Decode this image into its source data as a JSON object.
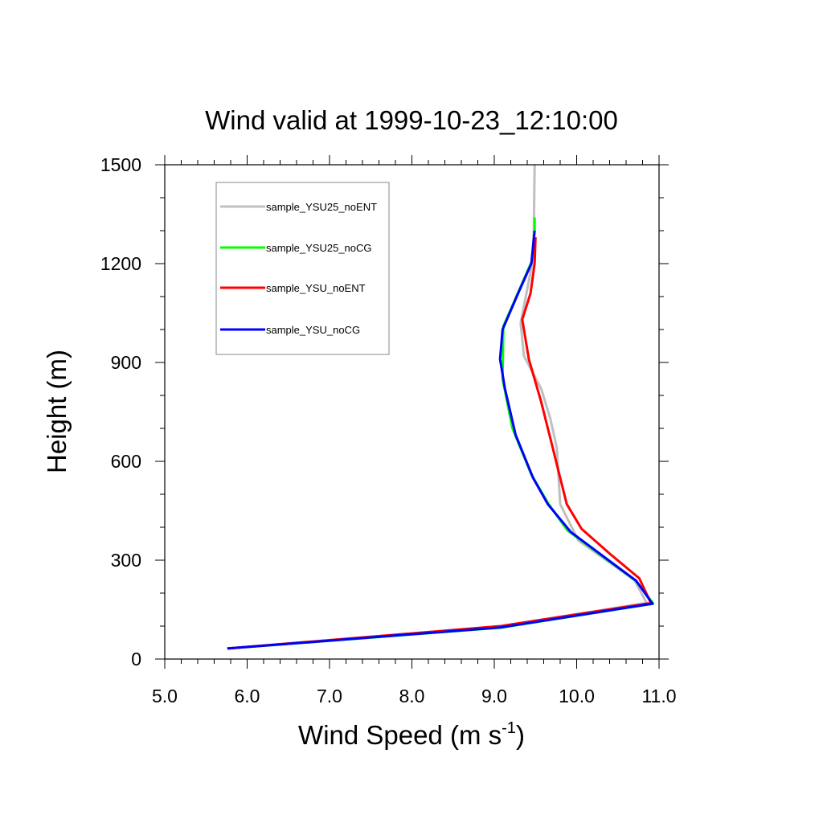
{
  "chart_data": {
    "type": "line",
    "title": "Wind valid at 1999-10-23_12:10:00",
    "xlabel": "Wind Speed (m s",
    "xlabel_sup": "-1",
    "xlabel_tail": ")",
    "ylabel": "Height (m)",
    "xlim": [
      5.0,
      11.0
    ],
    "ylim": [
      0,
      1500
    ],
    "xticks": [
      "5.0",
      "6.0",
      "7.0",
      "8.0",
      "9.0",
      "10.0",
      "11.0"
    ],
    "yticks": [
      "0",
      "300",
      "600",
      "900",
      "1200",
      "1500"
    ],
    "legend_position": "top-left",
    "grid": false,
    "series": [
      {
        "name": "sample_YSU25_noENT",
        "color": "#bfbfbf",
        "x": [
          5.76,
          9.08,
          10.85,
          10.7,
          10.02,
          9.8,
          9.76,
          9.68,
          9.57,
          9.36,
          9.32,
          9.46,
          9.48,
          9.49
        ],
        "y": [
          32,
          100,
          170,
          240,
          360,
          470,
          640,
          730,
          820,
          920,
          1020,
          1200,
          1300,
          1500
        ]
      },
      {
        "name": "sample_YSU25_noCG",
        "color": "#00ff00",
        "x": [
          5.76,
          9.08,
          10.93,
          10.73,
          9.89,
          9.66,
          9.45,
          9.22,
          9.1,
          9.11,
          9.46,
          9.49,
          9.49
        ],
        "y": [
          32,
          95,
          168,
          235,
          390,
          470,
          560,
          700,
          850,
          1010,
          1210,
          1300,
          1340
        ]
      },
      {
        "name": "sample_YSU_noENT",
        "color": "#ff0000",
        "x": [
          5.76,
          9.08,
          10.9,
          10.76,
          10.4,
          10.06,
          9.88,
          9.78,
          9.7,
          9.57,
          9.42,
          9.36,
          9.34,
          9.44,
          9.49,
          9.5
        ],
        "y": [
          32,
          100,
          170,
          245,
          320,
          395,
          470,
          570,
          650,
          780,
          910,
          1000,
          1030,
          1110,
          1200,
          1280
        ]
      },
      {
        "name": "sample_YSU_noCG",
        "color": "#0000ff",
        "x": [
          5.76,
          9.08,
          10.92,
          10.72,
          9.93,
          9.65,
          9.47,
          9.26,
          9.13,
          9.07,
          9.1,
          9.29,
          9.45,
          9.49
        ],
        "y": [
          32,
          96,
          168,
          238,
          385,
          470,
          550,
          680,
          820,
          910,
          1000,
          1110,
          1200,
          1300
        ]
      }
    ]
  }
}
